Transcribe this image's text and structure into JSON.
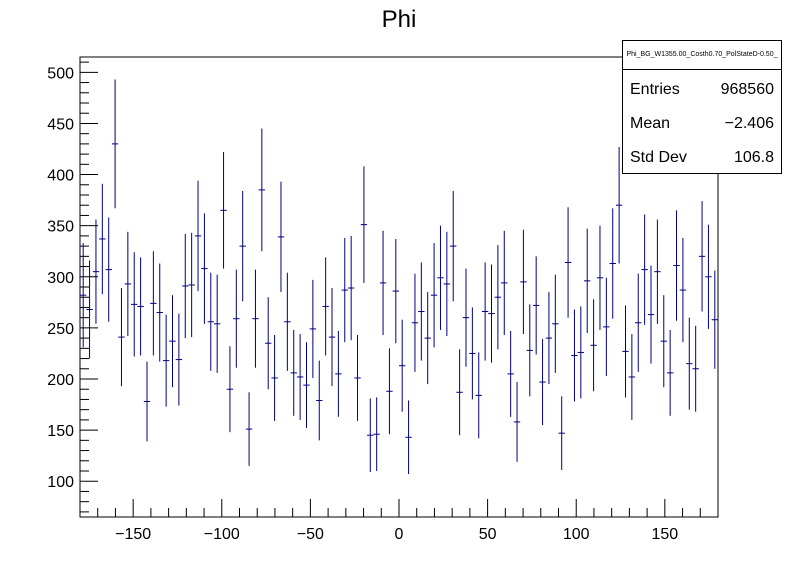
{
  "chart_data": {
    "type": "scatter",
    "title": "Phi",
    "xlabel": "",
    "ylabel": "",
    "xlim": [
      -180,
      180
    ],
    "ylim": [
      65,
      515
    ],
    "xticks": [
      -150,
      -100,
      -50,
      0,
      50,
      100,
      150
    ],
    "xtick_labels": [
      "−150",
      "−100",
      "−50",
      "0",
      "50",
      "100",
      "150"
    ],
    "yticks": [
      100,
      150,
      200,
      250,
      300,
      350,
      400,
      450,
      500
    ],
    "ytick_labels": [
      "100",
      "150",
      "200",
      "250",
      "300",
      "350",
      "400",
      "450",
      "500"
    ],
    "series_color": "#000080",
    "bin_width": 3.6,
    "x": [
      -178.2,
      -174.6,
      -171.0,
      -167.4,
      -163.8,
      -160.2,
      -156.6,
      -153.0,
      -149.4,
      -145.8,
      -142.2,
      -138.6,
      -135.0,
      -131.4,
      -127.8,
      -124.2,
      -120.6,
      -117.0,
      -113.4,
      -109.8,
      -106.2,
      -102.6,
      -99.0,
      -95.4,
      -91.8,
      -88.2,
      -84.6,
      -81.0,
      -77.4,
      -73.8,
      -70.2,
      -66.6,
      -63.0,
      -59.4,
      -55.8,
      -52.2,
      -48.6,
      -45.0,
      -41.4,
      -37.8,
      -34.2,
      -30.6,
      -27.0,
      -23.4,
      -19.8,
      -16.2,
      -12.6,
      -9.0,
      -5.4,
      -1.8,
      1.8,
      5.4,
      9.0,
      12.6,
      16.2,
      19.8,
      23.4,
      27.0,
      30.6,
      34.2,
      37.8,
      41.4,
      45.0,
      48.6,
      52.2,
      55.8,
      59.4,
      63.0,
      66.6,
      70.2,
      73.8,
      77.4,
      81.0,
      84.6,
      88.2,
      91.8,
      95.4,
      99.0,
      102.6,
      106.2,
      109.8,
      113.4,
      117.0,
      120.6,
      124.2,
      127.8,
      131.4,
      135.0,
      138.6,
      142.2,
      145.8,
      149.4,
      153.0,
      156.6,
      160.2,
      163.8,
      167.4,
      171.0,
      174.6,
      178.2
    ],
    "y": [
      282,
      268,
      305,
      337,
      307,
      430,
      241,
      293,
      273,
      271,
      178,
      274,
      265,
      218,
      237,
      219,
      291,
      292,
      340,
      308,
      256,
      254,
      365,
      190,
      259,
      330,
      151,
      259,
      385,
      235,
      201,
      339,
      256,
      206,
      202,
      194,
      249,
      179,
      271,
      241,
      205,
      287,
      289,
      201,
      351,
      145,
      146,
      294,
      188,
      286,
      213,
      143,
      255,
      266,
      240,
      282,
      299,
      293,
      330,
      187,
      260,
      225,
      184,
      266,
      264,
      280,
      294,
      205,
      158,
      295,
      228,
      272,
      197,
      240,
      254,
      147,
      314,
      223,
      226,
      296,
      233,
      299,
      251,
      313,
      370,
      227,
      202,
      255,
      307,
      263,
      305,
      237,
      206,
      311,
      287,
      215,
      210,
      320,
      300,
      258
    ],
    "yerr": [
      17,
      16,
      17,
      18,
      17,
      21,
      16,
      17,
      17,
      16,
      13,
      17,
      16,
      15,
      15,
      15,
      17,
      17,
      18,
      18,
      16,
      16,
      19,
      14,
      16,
      18,
      12,
      16,
      20,
      15,
      14,
      18,
      16,
      14,
      14,
      14,
      16,
      13,
      16,
      16,
      14,
      17,
      17,
      14,
      19,
      12,
      12,
      17,
      14,
      17,
      15,
      12,
      16,
      16,
      15,
      17,
      17,
      17,
      18,
      14,
      16,
      15,
      14,
      16,
      16,
      17,
      17,
      14,
      13,
      17,
      15,
      16,
      14,
      15,
      16,
      12,
      18,
      15,
      15,
      17,
      15,
      17,
      16,
      18,
      19,
      15,
      14,
      16,
      18,
      16,
      17,
      15,
      14,
      18,
      17,
      15,
      14,
      18,
      17,
      16
    ],
    "stats": {
      "name": "Phi_BG_W1355.00_Costh0.70_PolStateD-0.50_",
      "rows": [
        {
          "label": "Entries",
          "value": "968560"
        },
        {
          "label": "Mean",
          "value": "−2.406"
        },
        {
          "label": "Std Dev",
          "value": "106.8"
        }
      ]
    }
  }
}
